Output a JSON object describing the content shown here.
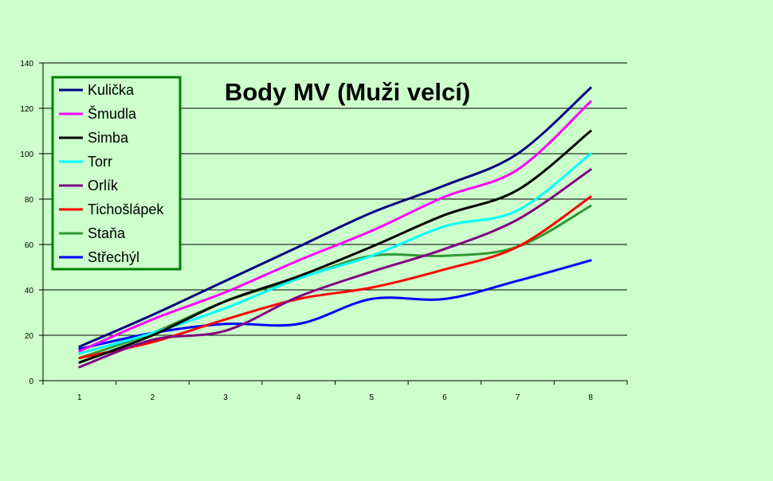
{
  "chart_data": {
    "type": "line",
    "title": "Body MV (Muži velcí)",
    "xlabel": "",
    "ylabel": "",
    "categories": [
      "1",
      "2",
      "3",
      "4",
      "5",
      "6",
      "7",
      "8"
    ],
    "ylim": [
      0,
      140
    ],
    "yticks": [
      0,
      20,
      40,
      60,
      80,
      100,
      120,
      140
    ],
    "grid": true,
    "legend_position": "top-left",
    "series": [
      {
        "name": "Kulička",
        "color": "#000080",
        "values": [
          15,
          29,
          44,
          59,
          74,
          86,
          100,
          129
        ]
      },
      {
        "name": "Šmudla",
        "color": "#ff00ff",
        "values": [
          13,
          27,
          39,
          53,
          66,
          81,
          93,
          123
        ]
      },
      {
        "name": "Simba",
        "color": "#000000",
        "values": [
          8,
          20,
          35,
          46,
          59,
          73,
          84,
          110
        ]
      },
      {
        "name": "Torr",
        "color": "#00ffff",
        "values": [
          12,
          21,
          32,
          45,
          55,
          68,
          75,
          100
        ]
      },
      {
        "name": "Orlík",
        "color": "#800080",
        "values": [
          6,
          18,
          22,
          37,
          48,
          58,
          71,
          93
        ]
      },
      {
        "name": "Tichošlápek",
        "color": "#ff0000",
        "values": [
          10,
          17,
          27,
          36,
          41,
          49,
          59,
          81
        ]
      },
      {
        "name": "Staňa",
        "color": "#339933",
        "values": [
          10,
          21,
          35,
          45,
          55,
          55,
          59,
          77
        ]
      },
      {
        "name": "Střechýl",
        "color": "#0000ff",
        "values": [
          14,
          21,
          25,
          25,
          36,
          36,
          44,
          53
        ]
      }
    ]
  }
}
